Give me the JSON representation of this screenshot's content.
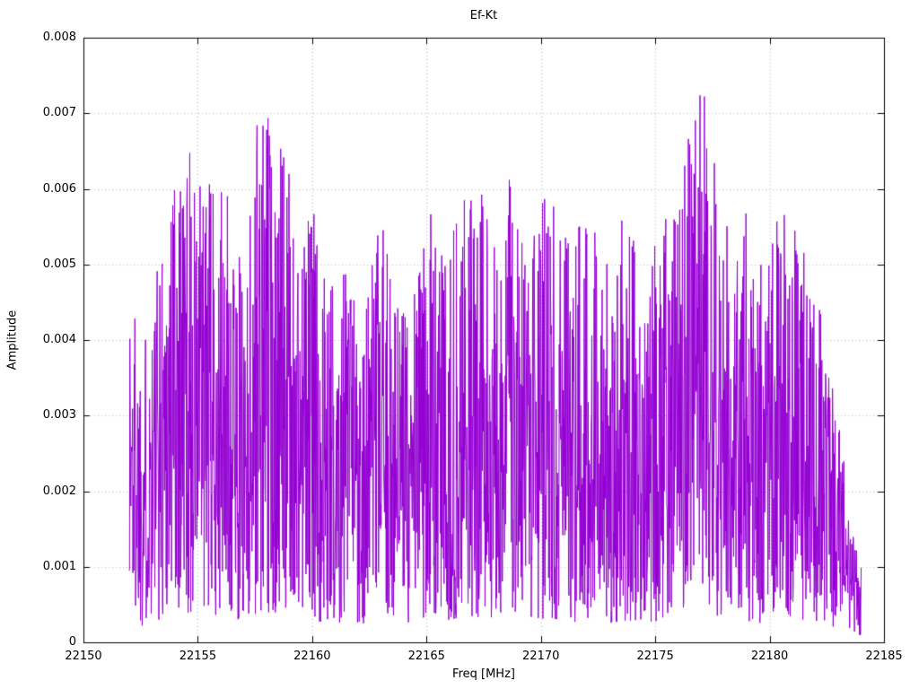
{
  "chart_data": {
    "type": "line",
    "title": "Ef-Kt",
    "xlabel": "Freq [MHz]",
    "ylabel": "Amplitude",
    "xlim": [
      22150,
      22185
    ],
    "ylim": [
      0,
      0.008
    ],
    "x_ticks": [
      {
        "value": 22150,
        "label": "22150"
      },
      {
        "value": 22155,
        "label": "22155"
      },
      {
        "value": 22160,
        "label": "22160"
      },
      {
        "value": 22165,
        "label": "22165"
      },
      {
        "value": 22170,
        "label": "22170"
      },
      {
        "value": 22175,
        "label": "22175"
      },
      {
        "value": 22180,
        "label": "22180"
      },
      {
        "value": 22185,
        "label": "22185"
      }
    ],
    "y_ticks": [
      {
        "value": 0,
        "label": "0"
      },
      {
        "value": 0.001,
        "label": "0.001"
      },
      {
        "value": 0.002,
        "label": "0.002"
      },
      {
        "value": 0.003,
        "label": "0.003"
      },
      {
        "value": 0.004,
        "label": "0.004"
      },
      {
        "value": 0.005,
        "label": "0.005"
      },
      {
        "value": 0.006,
        "label": "0.006"
      },
      {
        "value": 0.007,
        "label": "0.007"
      },
      {
        "value": 0.008,
        "label": "0.008"
      }
    ],
    "grid": true,
    "grid_style": "dotted",
    "grid_color": "#bbbbbb",
    "axis_color": "#000000",
    "background": "#ffffff",
    "legend": "none",
    "series": [
      {
        "name": "Ef-Kt",
        "color": "#9400D3",
        "x_start": 22152.0,
        "x_end": 22184.0,
        "n_points": 2200,
        "seed": 1337,
        "value_floor": 0.05,
        "value_exponent": 1.15,
        "min_amplitude": 0.0001,
        "max_amplitude": 0.00765,
        "envelope": [
          [
            22152.0,
            0.0051
          ],
          [
            22152.6,
            0.004
          ],
          [
            22153.4,
            0.0054
          ],
          [
            22154.2,
            0.0072
          ],
          [
            22154.9,
            0.0062
          ],
          [
            22155.6,
            0.0061
          ],
          [
            22156.3,
            0.0059
          ],
          [
            22157.0,
            0.0049
          ],
          [
            22157.6,
            0.0073
          ],
          [
            22158.2,
            0.007
          ],
          [
            22158.8,
            0.0066
          ],
          [
            22159.4,
            0.0053
          ],
          [
            22160.0,
            0.006
          ],
          [
            22160.7,
            0.0047
          ],
          [
            22161.4,
            0.0053
          ],
          [
            22162.2,
            0.0044
          ],
          [
            22163.0,
            0.0056
          ],
          [
            22163.8,
            0.0045
          ],
          [
            22164.6,
            0.005
          ],
          [
            22165.2,
            0.0058
          ],
          [
            22165.9,
            0.0052
          ],
          [
            22166.6,
            0.0059
          ],
          [
            22167.3,
            0.0061
          ],
          [
            22168.0,
            0.0052
          ],
          [
            22168.8,
            0.0064
          ],
          [
            22169.4,
            0.0048
          ],
          [
            22170.0,
            0.006
          ],
          [
            22170.7,
            0.0059
          ],
          [
            22171.4,
            0.0053
          ],
          [
            22172.2,
            0.0062
          ],
          [
            22173.0,
            0.005
          ],
          [
            22173.8,
            0.0059
          ],
          [
            22174.5,
            0.0048
          ],
          [
            22175.2,
            0.0057
          ],
          [
            22176.0,
            0.0057
          ],
          [
            22176.7,
            0.0073
          ],
          [
            22177.4,
            0.0077
          ],
          [
            22178.1,
            0.0057
          ],
          [
            22179.0,
            0.0057
          ],
          [
            22179.8,
            0.0049
          ],
          [
            22180.6,
            0.0064
          ],
          [
            22181.4,
            0.0053
          ],
          [
            22182.2,
            0.0045
          ],
          [
            22183.0,
            0.0032
          ],
          [
            22183.6,
            0.0015
          ],
          [
            22184.0,
            0.001
          ]
        ]
      }
    ]
  }
}
